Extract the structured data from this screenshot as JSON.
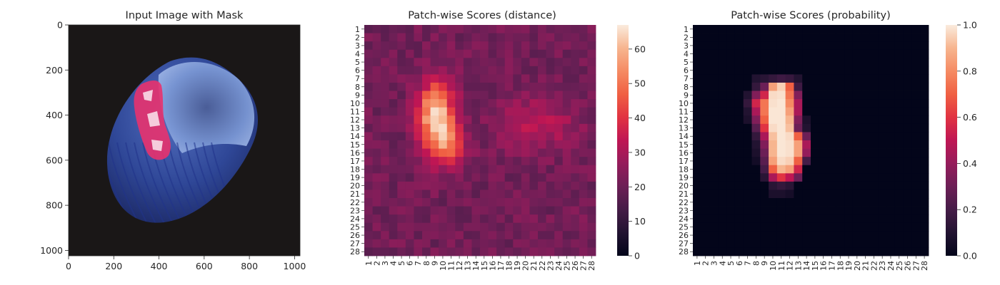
{
  "chart_data": [
    {
      "type": "image",
      "title": "Input Image with Mask",
      "xlim": [
        0,
        1024
      ],
      "ylim": [
        1024,
        0
      ],
      "xticks": [
        "0",
        "200",
        "400",
        "600",
        "800",
        "1000"
      ],
      "yticks": [
        "0",
        "200",
        "400",
        "600",
        "800",
        "1000"
      ],
      "xtick_values": [
        0,
        200,
        400,
        600,
        800,
        1000
      ],
      "ytick_values": [
        0,
        200,
        400,
        600,
        800,
        1000
      ],
      "colors": {
        "background": "#1a1717",
        "object": "#3a55a8",
        "object_highlight": "#7d9ad6",
        "mask": "#e8326e"
      }
    },
    {
      "type": "heatmap",
      "title": "Patch-wise Scores (distance)",
      "rows": 28,
      "cols": 28,
      "colorbar_range": [
        0,
        67
      ],
      "colorbar_ticks": [
        0,
        10,
        20,
        30,
        40,
        50,
        60
      ],
      "base_value": 21,
      "hotspots": [
        {
          "row": 11.5,
          "col": 9.2,
          "sigma_row": 2.9,
          "sigma_col": 1.5,
          "peak": 44
        },
        {
          "row": 15.2,
          "col": 10.8,
          "sigma_row": 1.8,
          "sigma_col": 1.4,
          "peak": 20
        },
        {
          "row": 12.5,
          "col": 21.5,
          "sigma_row": 2.2,
          "sigma_col": 3.2,
          "peak": 12
        }
      ]
    },
    {
      "type": "heatmap",
      "title": "Patch-wise Scores (probability)",
      "rows": 28,
      "cols": 28,
      "colorbar_range": [
        0,
        1
      ],
      "colorbar_ticks": [
        "0.0",
        "0.2",
        "0.4",
        "0.6",
        "0.8",
        "1.0"
      ],
      "nonzero_cells": [
        [
          6,
          7,
          0.1
        ],
        [
          6,
          8,
          0.12
        ],
        [
          6,
          9,
          0.15
        ],
        [
          6,
          10,
          0.18
        ],
        [
          6,
          11,
          0.16
        ],
        [
          6,
          12,
          0.1
        ],
        [
          7,
          7,
          0.15
        ],
        [
          7,
          8,
          0.3
        ],
        [
          7,
          9,
          0.85
        ],
        [
          7,
          10,
          0.95
        ],
        [
          7,
          11,
          0.7
        ],
        [
          7,
          12,
          0.18
        ],
        [
          8,
          6,
          0.1
        ],
        [
          8,
          7,
          0.35
        ],
        [
          8,
          8,
          0.55
        ],
        [
          8,
          9,
          0.97
        ],
        [
          8,
          10,
          0.98
        ],
        [
          8,
          11,
          0.75
        ],
        [
          8,
          12,
          0.35
        ],
        [
          9,
          6,
          0.15
        ],
        [
          9,
          7,
          0.55
        ],
        [
          9,
          8,
          0.75
        ],
        [
          9,
          9,
          0.98
        ],
        [
          9,
          10,
          0.99
        ],
        [
          9,
          11,
          0.8
        ],
        [
          9,
          12,
          0.45
        ],
        [
          10,
          6,
          0.1
        ],
        [
          10,
          7,
          0.45
        ],
        [
          10,
          8,
          0.75
        ],
        [
          10,
          9,
          0.99
        ],
        [
          10,
          10,
          0.99
        ],
        [
          10,
          11,
          0.85
        ],
        [
          10,
          12,
          0.45
        ],
        [
          11,
          6,
          0.08
        ],
        [
          11,
          7,
          0.35
        ],
        [
          11,
          8,
          0.7
        ],
        [
          11,
          9,
          0.99
        ],
        [
          11,
          10,
          0.99
        ],
        [
          11,
          11,
          0.9
        ],
        [
          11,
          12,
          0.35
        ],
        [
          11,
          13,
          0.08
        ],
        [
          12,
          7,
          0.25
        ],
        [
          12,
          8,
          0.6
        ],
        [
          12,
          9,
          0.97
        ],
        [
          12,
          10,
          0.99
        ],
        [
          12,
          11,
          0.92
        ],
        [
          12,
          12,
          0.3
        ],
        [
          12,
          13,
          0.1
        ],
        [
          13,
          7,
          0.15
        ],
        [
          13,
          8,
          0.45
        ],
        [
          13,
          9,
          0.92
        ],
        [
          13,
          10,
          0.99
        ],
        [
          13,
          11,
          0.97
        ],
        [
          13,
          12,
          0.7
        ],
        [
          13,
          13,
          0.3
        ],
        [
          14,
          7,
          0.1
        ],
        [
          14,
          8,
          0.35
        ],
        [
          14,
          9,
          0.9
        ],
        [
          14,
          10,
          0.99
        ],
        [
          14,
          11,
          0.98
        ],
        [
          14,
          12,
          0.85
        ],
        [
          14,
          13,
          0.45
        ],
        [
          15,
          7,
          0.08
        ],
        [
          15,
          8,
          0.3
        ],
        [
          15,
          9,
          0.9
        ],
        [
          15,
          10,
          0.99
        ],
        [
          15,
          11,
          0.98
        ],
        [
          15,
          12,
          0.85
        ],
        [
          15,
          13,
          0.4
        ],
        [
          16,
          7,
          0.05
        ],
        [
          16,
          8,
          0.25
        ],
        [
          16,
          9,
          0.85
        ],
        [
          16,
          10,
          0.97
        ],
        [
          16,
          11,
          0.95
        ],
        [
          16,
          12,
          0.7
        ],
        [
          16,
          13,
          0.2
        ],
        [
          17,
          8,
          0.2
        ],
        [
          17,
          9,
          0.7
        ],
        [
          17,
          10,
          0.9
        ],
        [
          17,
          11,
          0.85
        ],
        [
          17,
          12,
          0.55
        ],
        [
          18,
          8,
          0.12
        ],
        [
          18,
          9,
          0.45
        ],
        [
          18,
          10,
          0.6
        ],
        [
          18,
          11,
          0.5
        ],
        [
          18,
          12,
          0.3
        ],
        [
          19,
          9,
          0.12
        ],
        [
          19,
          10,
          0.15
        ],
        [
          19,
          11,
          0.12
        ],
        [
          20,
          9,
          0.08
        ],
        [
          20,
          10,
          0.08
        ],
        [
          20,
          11,
          0.06
        ]
      ]
    }
  ]
}
